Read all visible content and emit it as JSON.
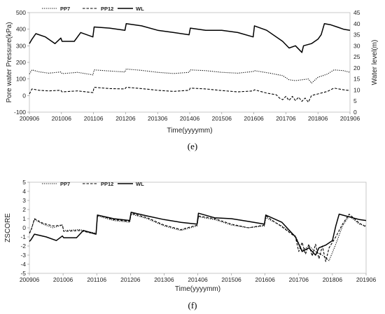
{
  "chart_data": [
    {
      "type": "line",
      "panel_label": "(e)",
      "xlabel": "Time(yyyymm)",
      "ylabel": "Pore water Pressure(kPa)",
      "y2label": "Water level(m)",
      "x_ticks": [
        "200906",
        "201006",
        "201106",
        "201206",
        "201306",
        "201406",
        "201506",
        "201606",
        "201706",
        "201806",
        "201906"
      ],
      "xlim": [
        0,
        10
      ],
      "ylim": [
        -100,
        500
      ],
      "y_ticks": [
        "-100",
        "0",
        "100",
        "200",
        "300",
        "400",
        "500"
      ],
      "y2lim": [
        0,
        45
      ],
      "y2_ticks": [
        "0",
        "5",
        "10",
        "15",
        "20",
        "25",
        "30",
        "35",
        "40",
        "45"
      ],
      "legend_position": "top-left",
      "series": [
        {
          "name": "PP7",
          "style": "dotted",
          "axis": "left",
          "x": [
            0,
            0.08,
            0.3,
            0.6,
            0.98,
            1.02,
            1.5,
            1.98,
            2.02,
            2.5,
            2.98,
            3.02,
            3.5,
            4.0,
            4.5,
            4.98,
            5.02,
            5.5,
            6.0,
            6.5,
            6.98,
            7.02,
            7.5,
            7.9,
            8.1,
            8.3,
            8.5,
            8.7,
            8.8,
            9.0,
            9.3,
            9.5,
            9.8,
            10
          ],
          "y": [
            130,
            155,
            143,
            135,
            142,
            132,
            140,
            125,
            155,
            148,
            142,
            160,
            152,
            140,
            133,
            140,
            155,
            150,
            140,
            135,
            145,
            150,
            135,
            120,
            95,
            90,
            95,
            100,
            75,
            110,
            130,
            155,
            150,
            140
          ]
        },
        {
          "name": "PP12",
          "style": "dashed",
          "axis": "left",
          "x": [
            0,
            0.08,
            0.3,
            0.6,
            0.98,
            1.02,
            1.5,
            1.98,
            2.02,
            2.5,
            2.98,
            3.02,
            3.5,
            4.0,
            4.5,
            4.98,
            5.02,
            5.5,
            6.0,
            6.5,
            6.98,
            7.02,
            7.4,
            7.7,
            7.8,
            7.9,
            8.0,
            8.1,
            8.2,
            8.3,
            8.4,
            8.5,
            8.6,
            8.7,
            8.8,
            9.0,
            9.3,
            9.5,
            9.8,
            10
          ],
          "y": [
            10,
            40,
            32,
            28,
            32,
            22,
            28,
            18,
            50,
            42,
            40,
            50,
            42,
            32,
            25,
            32,
            45,
            40,
            30,
            22,
            28,
            35,
            15,
            5,
            -15,
            -25,
            -5,
            -30,
            -5,
            -30,
            -10,
            -35,
            -15,
            -40,
            0,
            10,
            25,
            45,
            35,
            30
          ]
        },
        {
          "name": "WL",
          "style": "solid",
          "axis": "right",
          "x": [
            0,
            0.08,
            0.2,
            0.5,
            0.8,
            0.98,
            1.02,
            1.4,
            1.6,
            1.98,
            2.02,
            2.5,
            2.98,
            3.02,
            3.5,
            4.0,
            4.5,
            4.98,
            5.02,
            5.5,
            6.0,
            6.5,
            6.98,
            7.02,
            7.4,
            7.9,
            8.1,
            8.3,
            8.5,
            8.55,
            8.8,
            9.0,
            9.1,
            9.2,
            9.4,
            9.6,
            9.8,
            10
          ],
          "y": [
            31,
            33,
            35.5,
            34,
            31,
            33.5,
            32,
            32,
            36,
            34,
            38.5,
            38,
            37,
            40,
            39,
            37,
            36,
            35,
            38,
            37,
            37,
            36,
            34,
            39,
            37,
            32,
            29,
            30,
            27,
            30,
            31,
            33,
            35,
            40,
            39.5,
            38.5,
            37.5,
            37
          ]
        }
      ]
    },
    {
      "type": "line",
      "panel_label": "(f)",
      "xlabel": "Time(yyyymm)",
      "ylabel": "ZSCORE",
      "x_ticks": [
        "200906",
        "201006",
        "201106",
        "201206",
        "201306",
        "201406",
        "201506",
        "201606",
        "201706",
        "201806",
        "201906"
      ],
      "xlim": [
        0,
        10
      ],
      "ylim": [
        -5,
        5
      ],
      "y_ticks": [
        "-5",
        "-4",
        "-3",
        "-2",
        "-1",
        "0",
        "1",
        "2",
        "3",
        "4",
        "5"
      ],
      "legend_position": "top-left",
      "series": [
        {
          "name": "PP7",
          "style": "dotted",
          "x": [
            0,
            0.05,
            0.15,
            0.4,
            0.7,
            0.98,
            1.02,
            1.5,
            1.98,
            2.02,
            2.5,
            2.98,
            3.02,
            3.5,
            4.0,
            4.5,
            4.98,
            5.02,
            5.5,
            6.0,
            6.5,
            6.98,
            7.02,
            7.5,
            7.9,
            8.1,
            8.3,
            8.5,
            8.7,
            8.9,
            9.1,
            9.3,
            9.5,
            9.8,
            10
          ],
          "y": [
            -0.5,
            -0.2,
            0.9,
            0.4,
            0,
            0.3,
            -0.3,
            -0.2,
            -0.6,
            1.3,
            0.8,
            0.6,
            1.5,
            1.0,
            0.2,
            -0.3,
            0.2,
            1.2,
            0.9,
            0.3,
            0,
            0.2,
            1.1,
            0.2,
            -0.9,
            -2.5,
            -2.0,
            -2.6,
            -3.0,
            -3.6,
            -1.8,
            0.2,
            1.3,
            0.4,
            0.2
          ]
        },
        {
          "name": "PP12",
          "style": "dashed",
          "x": [
            0,
            0.05,
            0.15,
            0.4,
            0.7,
            0.98,
            1.02,
            1.5,
            1.98,
            2.02,
            2.5,
            2.98,
            3.02,
            3.5,
            4.0,
            4.5,
            4.98,
            5.02,
            5.5,
            6.0,
            6.5,
            6.98,
            7.02,
            7.5,
            7.9,
            8.0,
            8.1,
            8.2,
            8.3,
            8.4,
            8.5,
            8.6,
            8.7,
            8.8,
            8.9,
            9.1,
            9.3,
            9.5,
            9.8,
            10
          ],
          "y": [
            -0.6,
            -0.3,
            1.0,
            0.5,
            0.2,
            0.3,
            -0.4,
            -0.3,
            -0.7,
            1.4,
            0.9,
            0.7,
            1.6,
            1.1,
            0.3,
            -0.2,
            0.3,
            1.3,
            1.0,
            0.4,
            0,
            0.3,
            1.3,
            0.1,
            -1.0,
            -2.6,
            -1.6,
            -2.9,
            -1.8,
            -3.1,
            -1.8,
            -3.4,
            -2.0,
            -3.7,
            -2.2,
            -1.0,
            0.4,
            1.5,
            0.5,
            0.1
          ]
        },
        {
          "name": "WL",
          "style": "solid",
          "x": [
            0,
            0.05,
            0.15,
            0.5,
            0.8,
            0.98,
            1.02,
            1.4,
            1.6,
            1.98,
            2.02,
            2.5,
            2.98,
            3.02,
            3.5,
            4.0,
            4.5,
            4.98,
            5.02,
            5.5,
            6.0,
            6.5,
            6.98,
            7.02,
            7.5,
            7.9,
            8.1,
            8.3,
            8.5,
            8.6,
            8.8,
            9.0,
            9.1,
            9.2,
            9.4,
            9.6,
            9.8,
            10
          ],
          "y": [
            -1.5,
            -1.3,
            -0.7,
            -1.0,
            -1.4,
            -0.9,
            -1.1,
            -1.1,
            -0.3,
            -0.7,
            1.4,
            1.0,
            0.8,
            1.7,
            1.3,
            0.9,
            0.6,
            0.4,
            1.6,
            1.1,
            1.0,
            0.7,
            0.4,
            1.4,
            0.6,
            -1.0,
            -2.6,
            -2.2,
            -3.0,
            -2.2,
            -1.9,
            -1.4,
            0.2,
            1.5,
            1.3,
            1.1,
            0.9,
            0.8
          ]
        }
      ]
    }
  ]
}
